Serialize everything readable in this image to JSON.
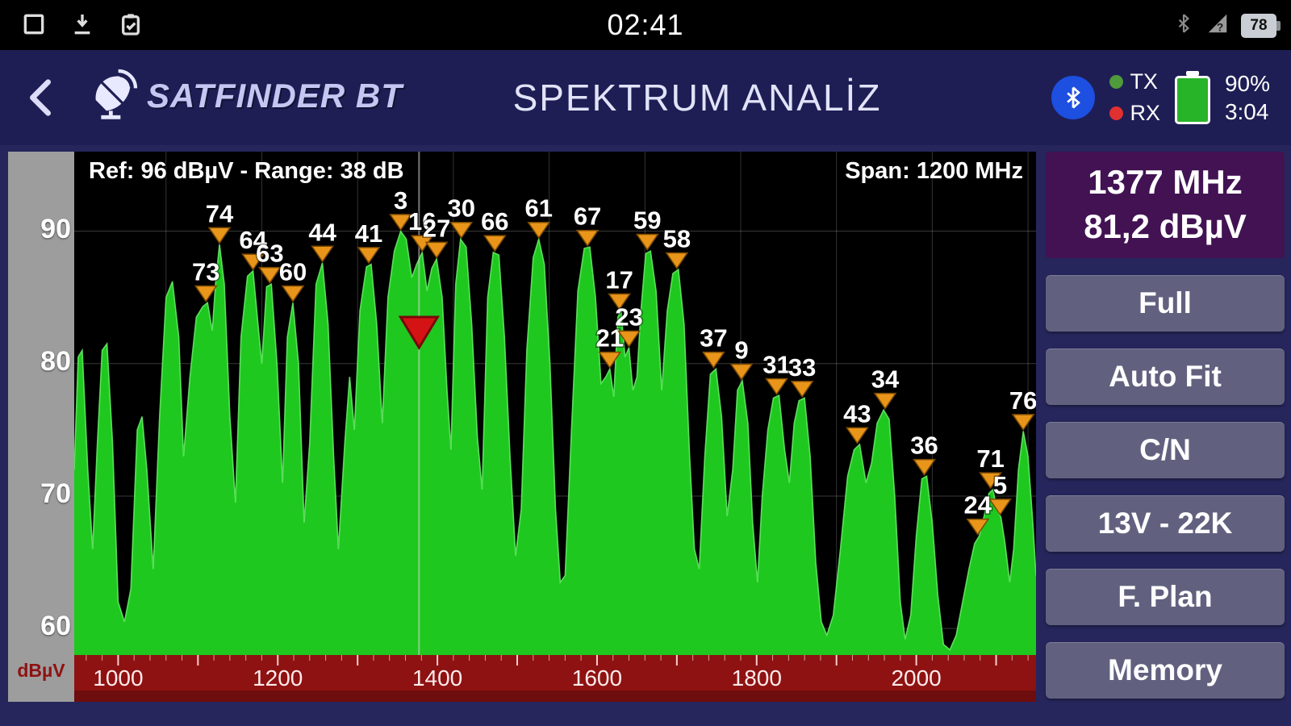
{
  "status_bar": {
    "time": "02:41",
    "battery_percent": "78",
    "left_icons": [
      "screenshot-icon",
      "download-icon",
      "task-check-icon"
    ],
    "right_icons": [
      "bluetooth-icon",
      "signal-question-icon",
      "battery-icon"
    ]
  },
  "header": {
    "logo_text": "SATFINDER BT",
    "title": "SPEKTRUM ANALİZ",
    "tx_label": "TX",
    "rx_label": "RX",
    "battery_percent": "90%",
    "battery_time": "3:04"
  },
  "readout": {
    "frequency": "1377 MHz",
    "level": "81,2 dBµV"
  },
  "buttons": [
    {
      "label": "Full"
    },
    {
      "label": "Auto Fit"
    },
    {
      "label": "C/N"
    },
    {
      "label": "13V - 22K"
    },
    {
      "label": "F. Plan"
    },
    {
      "label": "Memory"
    }
  ],
  "colors": {
    "spectrum_green": "#1fc81f",
    "spectrum_edge": "#6aee6a",
    "marker_orange": "#e8951a",
    "marker_border": "#7c4a00",
    "current_marker_red": "#d41414",
    "axis_red": "#8e1212",
    "header_navy": "#1e1e55",
    "panel_navy": "#26265c",
    "button_slate": "#61617f",
    "readout_purple": "#421253"
  },
  "chart_data": {
    "type": "area",
    "title_left": "Ref: 96 dBµV - Range: 38 dB",
    "title_right": "Span: 1200 MHz",
    "y_axis_label": "dBµV",
    "x_unit": "MHz",
    "y_unit": "dBµV",
    "x_domain": [
      945,
      2150
    ],
    "y_domain": [
      58,
      96
    ],
    "y_ticks": [
      90,
      80,
      70,
      60
    ],
    "x_ticks": [
      1000,
      1200,
      1400,
      1600,
      1800,
      2000
    ],
    "x_gridlines": [
      1060,
      1180,
      1300,
      1420,
      1540,
      1660,
      1780,
      1900,
      2020,
      2140
    ],
    "current_marker": {
      "freq": 1377,
      "level": 81.2
    },
    "markers": [
      {
        "label": "73",
        "freq": 1110,
        "level": 84.7
      },
      {
        "label": "74",
        "freq": 1127,
        "level": 89.1
      },
      {
        "label": "64",
        "freq": 1169,
        "level": 87.1
      },
      {
        "label": "63",
        "freq": 1190,
        "level": 86.1
      },
      {
        "label": "60",
        "freq": 1219,
        "level": 84.7
      },
      {
        "label": "44",
        "freq": 1256,
        "level": 87.7
      },
      {
        "label": "41",
        "freq": 1314,
        "level": 87.6
      },
      {
        "label": "3",
        "freq": 1354,
        "level": 90.1
      },
      {
        "label": "16",
        "freq": 1381,
        "level": 88.5
      },
      {
        "label": "27",
        "freq": 1399,
        "level": 88.0
      },
      {
        "label": "30",
        "freq": 1430,
        "level": 89.5
      },
      {
        "label": "66",
        "freq": 1472,
        "level": 88.5
      },
      {
        "label": "61",
        "freq": 1527,
        "level": 89.5
      },
      {
        "label": "67",
        "freq": 1588,
        "level": 88.9
      },
      {
        "label": "21",
        "freq": 1616,
        "level": 79.7
      },
      {
        "label": "17",
        "freq": 1628,
        "level": 84.1
      },
      {
        "label": "23",
        "freq": 1640,
        "level": 81.3
      },
      {
        "label": "59",
        "freq": 1663,
        "level": 88.6
      },
      {
        "label": "58",
        "freq": 1700,
        "level": 87.2
      },
      {
        "label": "37",
        "freq": 1746,
        "level": 79.7
      },
      {
        "label": "9",
        "freq": 1781,
        "level": 78.8
      },
      {
        "label": "31",
        "freq": 1825,
        "level": 77.7
      },
      {
        "label": "33",
        "freq": 1857,
        "level": 77.5
      },
      {
        "label": "43",
        "freq": 1926,
        "level": 74.0
      },
      {
        "label": "34",
        "freq": 1961,
        "level": 76.6
      },
      {
        "label": "36",
        "freq": 2010,
        "level": 71.6
      },
      {
        "label": "24",
        "freq": 2077,
        "level": 67.1
      },
      {
        "label": "71",
        "freq": 2093,
        "level": 70.6
      },
      {
        "label": "5",
        "freq": 2105,
        "level": 68.6
      },
      {
        "label": "76",
        "freq": 2134,
        "level": 75.0
      }
    ],
    "points": [
      [
        945,
        72
      ],
      [
        950,
        80.5
      ],
      [
        955,
        81
      ],
      [
        962,
        72
      ],
      [
        968,
        66
      ],
      [
        974,
        74
      ],
      [
        980,
        81
      ],
      [
        986,
        81.5
      ],
      [
        993,
        74
      ],
      [
        1000,
        62
      ],
      [
        1008,
        60.5
      ],
      [
        1016,
        63
      ],
      [
        1024,
        75
      ],
      [
        1030,
        76
      ],
      [
        1036,
        72
      ],
      [
        1044,
        64.5
      ],
      [
        1052,
        76
      ],
      [
        1060,
        85
      ],
      [
        1068,
        86.2
      ],
      [
        1076,
        82
      ],
      [
        1082,
        73
      ],
      [
        1090,
        79
      ],
      [
        1098,
        83.5
      ],
      [
        1106,
        84.3
      ],
      [
        1112,
        84.6
      ],
      [
        1118,
        82.5
      ],
      [
        1122,
        86
      ],
      [
        1127,
        89
      ],
      [
        1133,
        86
      ],
      [
        1140,
        76
      ],
      [
        1147,
        69.5
      ],
      [
        1154,
        82
      ],
      [
        1162,
        86.6
      ],
      [
        1169,
        87
      ],
      [
        1176,
        82.5
      ],
      [
        1180,
        80
      ],
      [
        1186,
        85.8
      ],
      [
        1192,
        86
      ],
      [
        1199,
        80
      ],
      [
        1206,
        71
      ],
      [
        1212,
        82
      ],
      [
        1219,
        84.6
      ],
      [
        1226,
        80
      ],
      [
        1233,
        68
      ],
      [
        1240,
        74
      ],
      [
        1248,
        86
      ],
      [
        1256,
        87.6
      ],
      [
        1263,
        83
      ],
      [
        1270,
        73
      ],
      [
        1276,
        66
      ],
      [
        1284,
        74
      ],
      [
        1290,
        79
      ],
      [
        1296,
        75
      ],
      [
        1303,
        84
      ],
      [
        1311,
        87.3
      ],
      [
        1317,
        87.5
      ],
      [
        1324,
        83
      ],
      [
        1331,
        75.5
      ],
      [
        1338,
        85
      ],
      [
        1346,
        88.5
      ],
      [
        1354,
        90
      ],
      [
        1361,
        89.4
      ],
      [
        1368,
        86.5
      ],
      [
        1374,
        87.5
      ],
      [
        1381,
        88.4
      ],
      [
        1387,
        85.5
      ],
      [
        1393,
        87.2
      ],
      [
        1399,
        87.9
      ],
      [
        1406,
        85
      ],
      [
        1412,
        78
      ],
      [
        1417,
        73.5
      ],
      [
        1423,
        86
      ],
      [
        1429,
        89.4
      ],
      [
        1436,
        88.8
      ],
      [
        1443,
        83
      ],
      [
        1450,
        74.5
      ],
      [
        1456,
        70.5
      ],
      [
        1463,
        85
      ],
      [
        1470,
        88.4
      ],
      [
        1477,
        88.2
      ],
      [
        1484,
        82
      ],
      [
        1491,
        73
      ],
      [
        1498,
        65.5
      ],
      [
        1505,
        69
      ],
      [
        1512,
        81
      ],
      [
        1520,
        88
      ],
      [
        1527,
        89.4
      ],
      [
        1534,
        87.5
      ],
      [
        1541,
        80
      ],
      [
        1548,
        69
      ],
      [
        1554,
        63.5
      ],
      [
        1560,
        64
      ],
      [
        1568,
        75
      ],
      [
        1576,
        85.5
      ],
      [
        1584,
        88.7
      ],
      [
        1591,
        88.8
      ],
      [
        1598,
        85
      ],
      [
        1605,
        78.5
      ],
      [
        1611,
        79
      ],
      [
        1616,
        79.6
      ],
      [
        1621,
        77.5
      ],
      [
        1626,
        83.5
      ],
      [
        1630,
        84
      ],
      [
        1635,
        80.5
      ],
      [
        1640,
        81.2
      ],
      [
        1645,
        78
      ],
      [
        1650,
        79
      ],
      [
        1655,
        84
      ],
      [
        1661,
        88.3
      ],
      [
        1667,
        88.5
      ],
      [
        1674,
        85.5
      ],
      [
        1681,
        78
      ],
      [
        1688,
        84
      ],
      [
        1695,
        86.8
      ],
      [
        1702,
        87.1
      ],
      [
        1709,
        83
      ],
      [
        1716,
        73
      ],
      [
        1722,
        66
      ],
      [
        1728,
        64.5
      ],
      [
        1735,
        73
      ],
      [
        1742,
        79.2
      ],
      [
        1749,
        79.6
      ],
      [
        1756,
        76
      ],
      [
        1763,
        68.5
      ],
      [
        1770,
        72
      ],
      [
        1776,
        78
      ],
      [
        1782,
        78.7
      ],
      [
        1789,
        75.5
      ],
      [
        1795,
        68
      ],
      [
        1801,
        63.5
      ],
      [
        1807,
        70
      ],
      [
        1814,
        75
      ],
      [
        1821,
        77.4
      ],
      [
        1828,
        77.6
      ],
      [
        1835,
        73.5
      ],
      [
        1841,
        71
      ],
      [
        1847,
        75.5
      ],
      [
        1853,
        77.2
      ],
      [
        1860,
        77.4
      ],
      [
        1867,
        73
      ],
      [
        1874,
        65
      ],
      [
        1881,
        60.5
      ],
      [
        1888,
        59.5
      ],
      [
        1896,
        61
      ],
      [
        1905,
        66
      ],
      [
        1914,
        71.5
      ],
      [
        1922,
        73.5
      ],
      [
        1929,
        73.9
      ],
      [
        1937,
        71
      ],
      [
        1944,
        72.5
      ],
      [
        1951,
        75.5
      ],
      [
        1959,
        76.5
      ],
      [
        1966,
        75.8
      ],
      [
        1973,
        70
      ],
      [
        1980,
        62
      ],
      [
        1986,
        59.2
      ],
      [
        1993,
        61
      ],
      [
        2000,
        67
      ],
      [
        2007,
        71.3
      ],
      [
        2013,
        71.5
      ],
      [
        2020,
        68
      ],
      [
        2027,
        62.5
      ],
      [
        2034,
        58.8
      ],
      [
        2042,
        58.4
      ],
      [
        2050,
        59.5
      ],
      [
        2058,
        62
      ],
      [
        2066,
        64.5
      ],
      [
        2073,
        66.4
      ],
      [
        2079,
        67
      ],
      [
        2085,
        68.5
      ],
      [
        2091,
        70.2
      ],
      [
        2096,
        70.5
      ],
      [
        2101,
        69
      ],
      [
        2106,
        68.4
      ],
      [
        2111,
        66.5
      ],
      [
        2117,
        63.5
      ],
      [
        2122,
        66
      ],
      [
        2128,
        72
      ],
      [
        2134,
        74.9
      ],
      [
        2140,
        73
      ],
      [
        2146,
        68
      ],
      [
        2150,
        64
      ]
    ]
  }
}
